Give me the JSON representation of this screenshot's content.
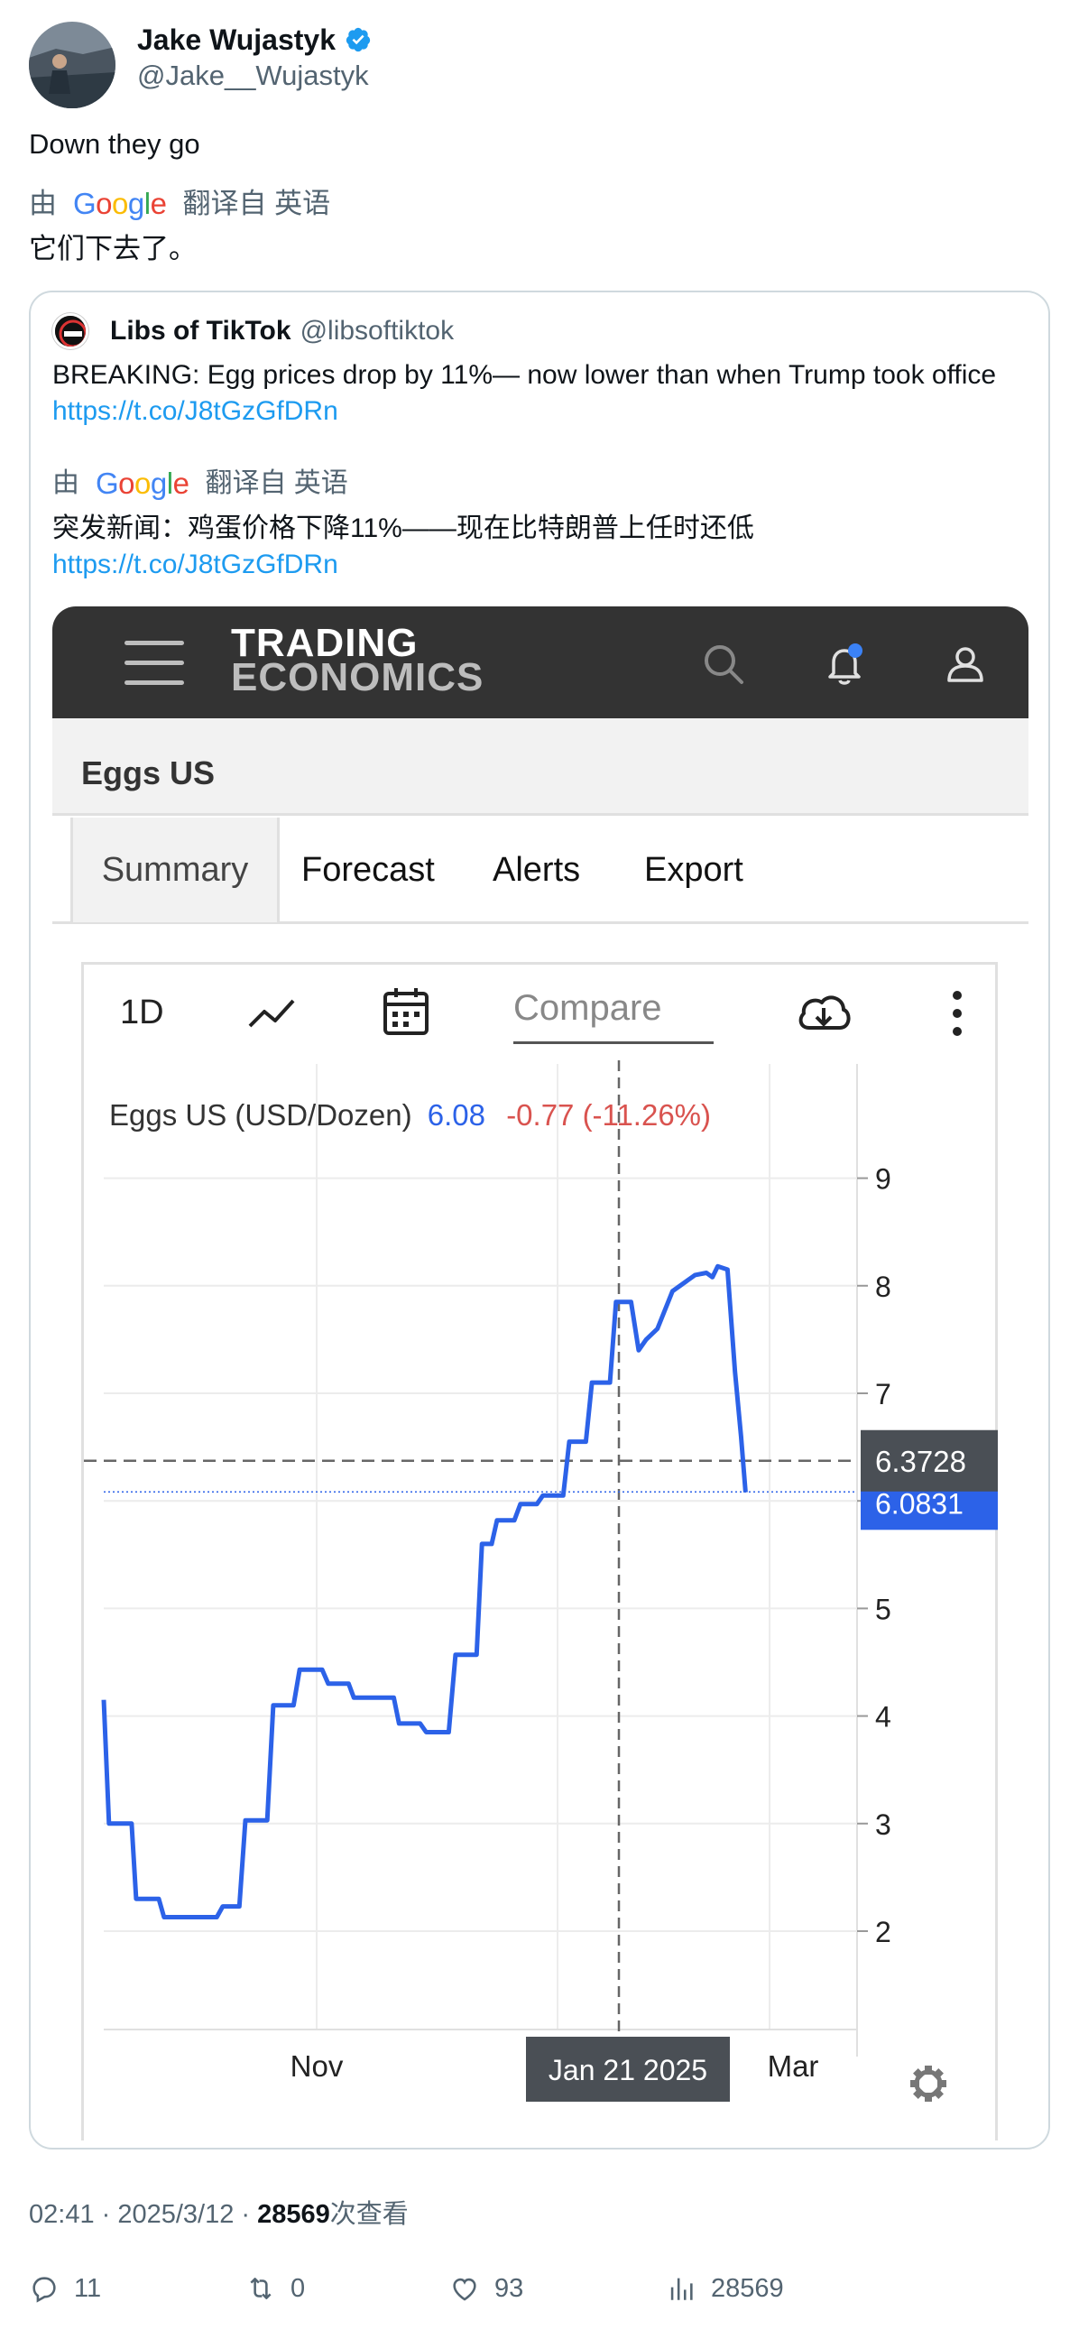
{
  "author": {
    "name": "Jake Wujastyk",
    "handle": "@Jake__Wujastyk",
    "verified": true
  },
  "tweet": {
    "text": "Down they go",
    "translate_prefix": "由",
    "translate_brand": "Google",
    "translate_suffix": "翻译自 英语",
    "translated_text": "它们下去了。"
  },
  "quote": {
    "author_name": "Libs of TikTok",
    "author_handle": "@libsoftiktok",
    "text": "BREAKING: Egg prices drop by 11%— now lower than when Trump took office ",
    "link": "https://t.co/J8tGzGfDRn",
    "translate_prefix": "由",
    "translate_brand": "Google",
    "translate_suffix": "翻译自 英语",
    "translated_text": "突发新闻：鸡蛋价格下降11%——现在比特朗普上任时还低",
    "translated_link": "https://t.co/J8tGzGfDRn"
  },
  "embedded": {
    "logo_line1": "TRADING",
    "logo_line2": "ECONOMICS",
    "page_title": "Eggs US",
    "tabs": [
      "Summary",
      "Forecast",
      "Alerts",
      "Export"
    ],
    "active_tab": "Summary",
    "toolbar": {
      "period": "1D",
      "compare_placeholder": "Compare"
    },
    "chart_title": "Eggs US (USD/Dozen)",
    "chart_value": "6.08",
    "chart_change": "-0.77 (-11.26%)",
    "crosshair_value": "6.3728",
    "last_value_label": "6.0831",
    "crosshair_date": "Jan 21 2025",
    "colors": {
      "line": "#2c62e8",
      "change": "#d9534f",
      "header": "#333333"
    }
  },
  "chart_data": {
    "type": "line",
    "title": "Eggs US (USD/Dozen)",
    "xlabel": "",
    "ylabel": "",
    "ylim": [
      1,
      10
    ],
    "y_ticks": [
      2,
      3,
      4,
      5,
      6,
      7,
      8,
      9
    ],
    "x_tick_labels": [
      "Nov",
      "Mar"
    ],
    "grid": true,
    "crosshair": {
      "date": "Jan 21 2025",
      "value": 6.3728
    },
    "last_value": 6.0831,
    "series": [
      {
        "points": [
          [
            0.0,
            4.15
          ],
          [
            0.007,
            3.0
          ],
          [
            0.037,
            3.0
          ],
          [
            0.043,
            2.3
          ],
          [
            0.073,
            2.3
          ],
          [
            0.08,
            2.13
          ],
          [
            0.15,
            2.13
          ],
          [
            0.158,
            2.23
          ],
          [
            0.18,
            2.23
          ],
          [
            0.188,
            3.03
          ],
          [
            0.217,
            3.03
          ],
          [
            0.225,
            4.1
          ],
          [
            0.252,
            4.1
          ],
          [
            0.26,
            4.43
          ],
          [
            0.29,
            4.43
          ],
          [
            0.298,
            4.3
          ],
          [
            0.325,
            4.3
          ],
          [
            0.332,
            4.17
          ],
          [
            0.385,
            4.17
          ],
          [
            0.392,
            3.93
          ],
          [
            0.42,
            3.93
          ],
          [
            0.428,
            3.85
          ],
          [
            0.458,
            3.85
          ],
          [
            0.467,
            4.57
          ],
          [
            0.495,
            4.57
          ],
          [
            0.502,
            5.6
          ],
          [
            0.515,
            5.6
          ],
          [
            0.522,
            5.82
          ],
          [
            0.545,
            5.82
          ],
          [
            0.553,
            5.97
          ],
          [
            0.575,
            5.97
          ],
          [
            0.583,
            6.05
          ],
          [
            0.61,
            6.05
          ],
          [
            0.618,
            6.55
          ],
          [
            0.64,
            6.55
          ],
          [
            0.648,
            7.1
          ],
          [
            0.672,
            7.1
          ],
          [
            0.68,
            7.85
          ],
          [
            0.7,
            7.85
          ],
          [
            0.71,
            7.4
          ],
          [
            0.72,
            7.5
          ],
          [
            0.735,
            7.6
          ],
          [
            0.755,
            7.95
          ],
          [
            0.785,
            8.1
          ],
          [
            0.8,
            8.12
          ],
          [
            0.808,
            8.08
          ],
          [
            0.815,
            8.18
          ],
          [
            0.828,
            8.15
          ],
          [
            0.838,
            7.2
          ],
          [
            0.846,
            6.6
          ],
          [
            0.852,
            6.08
          ]
        ]
      }
    ]
  },
  "meta": {
    "time": "02:41 · 2025/3/12 · ",
    "views": "28569",
    "views_suffix": "次查看"
  },
  "actions": {
    "replies": "11",
    "reposts": "0",
    "likes": "93",
    "views": "28569"
  }
}
